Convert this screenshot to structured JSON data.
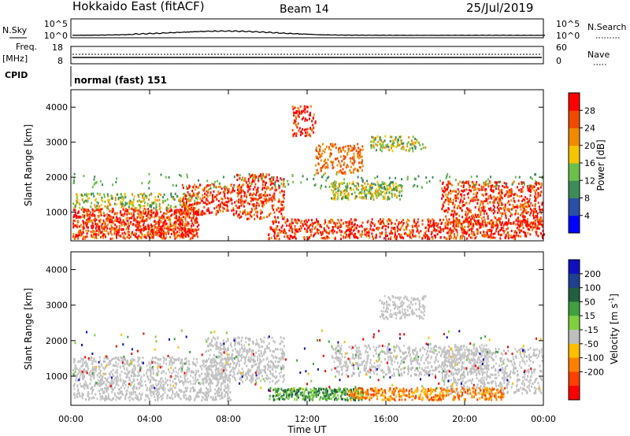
{
  "header": {
    "title": "Hokkaido East (fitACF)",
    "beam": "Beam 14",
    "date": "25/Jul/2019"
  },
  "noise_panel": {
    "left_label": "N.Sky",
    "right_label": "N.Search",
    "ticks": [
      "10^5",
      "10^0"
    ]
  },
  "freq_panel": {
    "left_label": "Freq.",
    "left_unit": "[MHz]",
    "right_label": "Nave",
    "left_ticks": [
      "18",
      "8"
    ],
    "right_ticks": [
      "60",
      "0"
    ]
  },
  "cpid_panel": {
    "label": "CPID",
    "text": "normal (fast) 151"
  },
  "colors": {
    "power_scale": [
      "#0000ff",
      "#2a4fa8",
      "#3c8c5a",
      "#6cbf4a",
      "#f5c400",
      "#f08a00",
      "#f04a00",
      "#ff0000"
    ],
    "velocity_scale": [
      "#ff0000",
      "#ff4000",
      "#ff8000",
      "#ffbf00",
      "#bfbfbf",
      "#7fcf3f",
      "#3fa040",
      "#206040",
      "#204090",
      "#1010c0"
    ],
    "ground_scatter": "#bfbfbf"
  },
  "chart_data": [
    {
      "type": "heatmap",
      "name": "power",
      "ylabel": "Slant Range [km]",
      "xlabel": "",
      "yticks": [
        1000,
        2000,
        3000,
        4000
      ],
      "ylim": [
        180,
        4500
      ],
      "xticks": [
        "00:00",
        "04:00",
        "08:00",
        "12:00",
        "16:00",
        "20:00",
        "00:00"
      ],
      "colorbar": {
        "label": "Power [dB]",
        "ticks": [
          "4",
          "8",
          "12",
          "16",
          "20",
          "24",
          "28"
        ]
      }
    },
    {
      "type": "heatmap",
      "name": "velocity",
      "ylabel": "Slant Range [km]",
      "xlabel": "Time UT",
      "yticks": [
        1000,
        2000,
        3000,
        4000
      ],
      "ylim": [
        180,
        4500
      ],
      "xticks": [
        "00:00",
        "04:00",
        "08:00",
        "12:00",
        "16:00",
        "20:00",
        "00:00"
      ],
      "colorbar": {
        "label": "Velocity [m s",
        "label_sup": "-1",
        "label_end": "]",
        "ticks": [
          "200",
          "100",
          "50",
          "15",
          "-15",
          "-50",
          "-100",
          "-200"
        ]
      }
    }
  ]
}
